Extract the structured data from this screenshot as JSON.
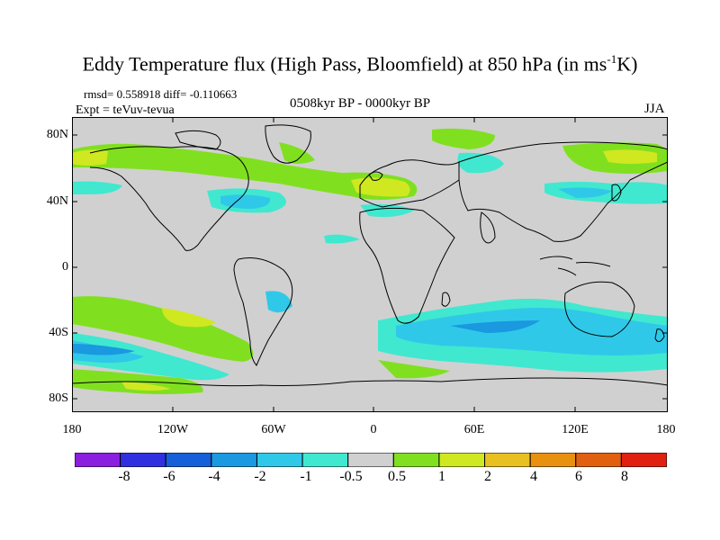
{
  "title": {
    "main": "Eddy Temperature flux (High Pass, Bloomfield) at 850 hPa (in ms",
    "sup": "-1",
    "unit_tail": "K)"
  },
  "stats": "rmsd= 0.558918 diff= -0.110663",
  "experiment": "Expt = teVuv-tevua",
  "period": "0508kyr BP - 0000kyr BP",
  "season": "JJA",
  "lat_labels": [
    "80N",
    "40N",
    "0",
    "40S",
    "80S"
  ],
  "lon_labels": [
    "180",
    "120W",
    "60W",
    "0",
    "60E",
    "120E",
    "180"
  ],
  "colorbar": {
    "labels": [
      "-8",
      "-6",
      "-4",
      "-2",
      "-1",
      "-0.5",
      "0.5",
      "1",
      "2",
      "4",
      "6",
      "8"
    ],
    "colors": [
      "#8b1fe0",
      "#3030e0",
      "#1560d8",
      "#1a98e0",
      "#30c8e8",
      "#40e8d0",
      "#d0d0d0",
      "#80e020",
      "#d0e820",
      "#e8c020",
      "#e89010",
      "#e06010",
      "#e02010"
    ]
  },
  "map_colors": {
    "background": "#d0d0d0",
    "coast": "#000000"
  }
}
